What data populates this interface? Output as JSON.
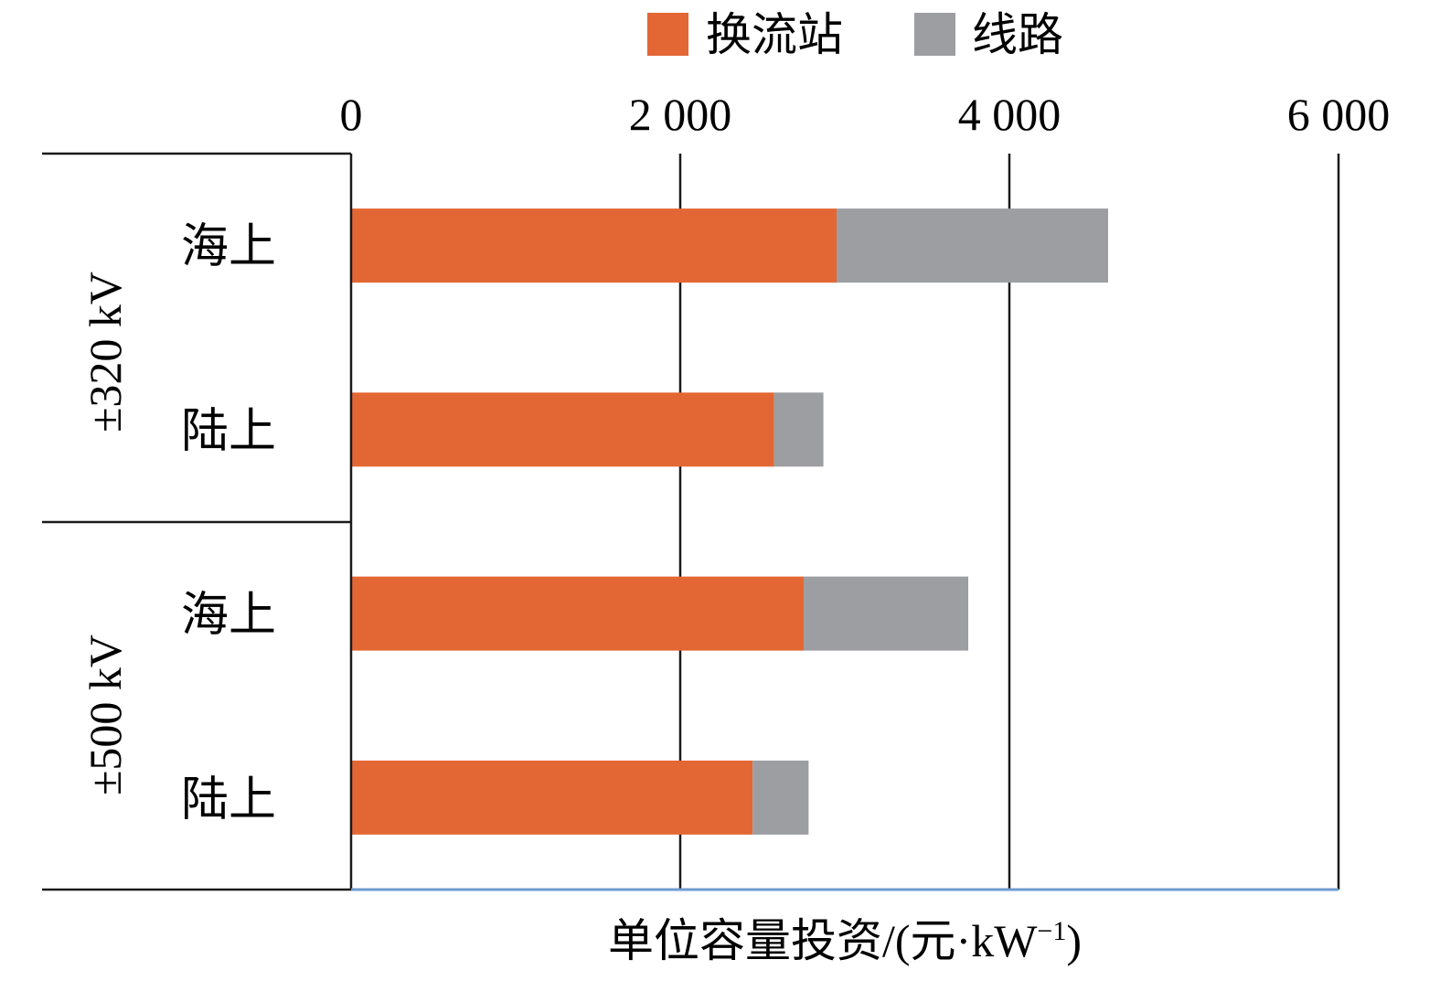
{
  "chart_data": {
    "type": "bar",
    "orientation": "horizontal",
    "stacked": true,
    "categories": [
      "海上",
      "陆上",
      "海上",
      "陆上"
    ],
    "groups": [
      {
        "label": "±320 kV",
        "categories": [
          "海上",
          "陆上"
        ]
      },
      {
        "label": "±500 kV",
        "categories": [
          "海上",
          "陆上"
        ]
      }
    ],
    "series": [
      {
        "name": "换流站",
        "color": "#e36734",
        "values": [
          2950,
          2570,
          2750,
          2440
        ]
      },
      {
        "name": "线路",
        "color": "#9d9ea2",
        "values": [
          1650,
          300,
          1000,
          340
        ]
      }
    ],
    "xlabel": "单位容量投资/(元·kW⁻¹)",
    "xlabel_main": "单位容量投资/(元·kW",
    "xlabel_sup": "−1",
    "xlabel_close": ")",
    "xlim": [
      0,
      6000
    ],
    "xticks": [
      0,
      2000,
      4000,
      6000
    ],
    "xtick_labels": [
      "0",
      "2 000",
      "4 000",
      "6 000"
    ],
    "axis_position": "top",
    "grid": true,
    "legend_position": "top"
  }
}
